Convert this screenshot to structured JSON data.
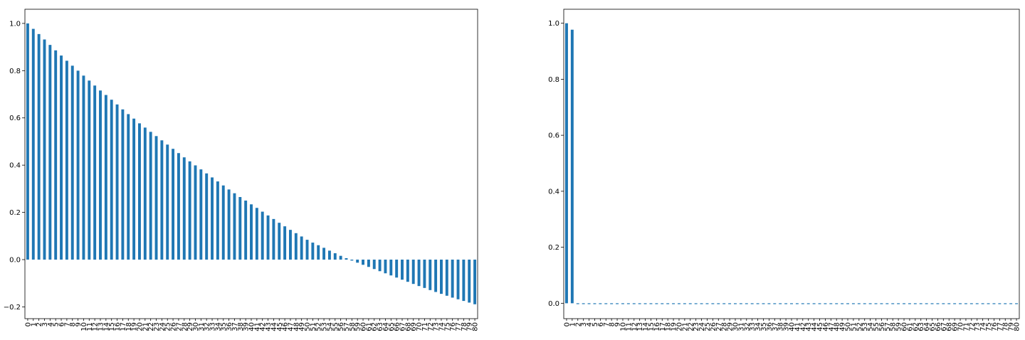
{
  "chart_data": [
    {
      "type": "bar",
      "title": "",
      "xlabel": "",
      "ylabel": "",
      "grid": false,
      "categories": [
        "0",
        "1",
        "2",
        "3",
        "4",
        "5",
        "6",
        "7",
        "8",
        "9",
        "10",
        "11",
        "12",
        "13",
        "14",
        "15",
        "16",
        "17",
        "18",
        "19",
        "20",
        "21",
        "22",
        "23",
        "24",
        "25",
        "26",
        "27",
        "28",
        "29",
        "30",
        "31",
        "32",
        "33",
        "34",
        "35",
        "36",
        "37",
        "38",
        "39",
        "40",
        "41",
        "42",
        "43",
        "44",
        "45",
        "46",
        "47",
        "48",
        "49",
        "50",
        "51",
        "52",
        "53",
        "54",
        "55",
        "56",
        "57",
        "58",
        "59",
        "60",
        "61",
        "62",
        "63",
        "64",
        "65",
        "66",
        "67",
        "68",
        "69",
        "70",
        "71",
        "72",
        "73",
        "74",
        "75",
        "76",
        "77",
        "78",
        "79",
        "80"
      ],
      "values": [
        1.0,
        0.977,
        0.955,
        0.932,
        0.909,
        0.886,
        0.864,
        0.842,
        0.821,
        0.8,
        0.779,
        0.758,
        0.737,
        0.716,
        0.697,
        0.677,
        0.657,
        0.636,
        0.616,
        0.597,
        0.577,
        0.559,
        0.541,
        0.523,
        0.505,
        0.487,
        0.469,
        0.451,
        0.433,
        0.416,
        0.399,
        0.382,
        0.365,
        0.348,
        0.331,
        0.314,
        0.297,
        0.281,
        0.265,
        0.25,
        0.234,
        0.219,
        0.203,
        0.187,
        0.172,
        0.156,
        0.141,
        0.126,
        0.112,
        0.098,
        0.084,
        0.072,
        0.061,
        0.05,
        0.038,
        0.027,
        0.016,
        0.006,
        -0.004,
        -0.013,
        -0.022,
        -0.031,
        -0.04,
        -0.049,
        -0.058,
        -0.067,
        -0.076,
        -0.085,
        -0.094,
        -0.103,
        -0.112,
        -0.12,
        -0.129,
        -0.137,
        -0.145,
        -0.153,
        -0.161,
        -0.168,
        -0.175,
        -0.182,
        -0.189
      ],
      "ylim": [
        -0.25,
        1.06
      ],
      "yticks": [
        "−0.2",
        "0.0",
        "0.2",
        "0.4",
        "0.6",
        "0.8",
        "1.0"
      ],
      "ytick_values": [
        -0.2,
        0.0,
        0.2,
        0.4,
        0.6,
        0.8,
        1.0
      ],
      "color": "#1f77b4"
    },
    {
      "type": "bar",
      "title": "",
      "xlabel": "",
      "ylabel": "",
      "grid": false,
      "categories": [
        "0",
        "1",
        "2",
        "3",
        "4",
        "5",
        "6",
        "7",
        "8",
        "9",
        "10",
        "11",
        "12",
        "13",
        "14",
        "15",
        "16",
        "17",
        "18",
        "19",
        "20",
        "21",
        "22",
        "23",
        "24",
        "25",
        "26",
        "27",
        "28",
        "29",
        "30",
        "31",
        "32",
        "33",
        "34",
        "35",
        "36",
        "37",
        "38",
        "39",
        "40",
        "41",
        "42",
        "43",
        "44",
        "45",
        "46",
        "47",
        "48",
        "49",
        "50",
        "51",
        "52",
        "53",
        "54",
        "55",
        "56",
        "57",
        "58",
        "59",
        "60",
        "61",
        "62",
        "63",
        "64",
        "65",
        "66",
        "67",
        "68",
        "69",
        "70",
        "71",
        "72",
        "73",
        "74",
        "75",
        "76",
        "77",
        "78",
        "79",
        "80"
      ],
      "values": [
        1.0,
        0.977,
        -0.003,
        -0.003,
        -0.003,
        -0.003,
        -0.003,
        -0.003,
        -0.003,
        -0.003,
        -0.003,
        -0.003,
        -0.003,
        -0.003,
        -0.003,
        -0.003,
        -0.003,
        -0.003,
        -0.003,
        -0.003,
        -0.003,
        -0.003,
        -0.003,
        -0.003,
        -0.003,
        -0.003,
        -0.003,
        -0.003,
        -0.003,
        -0.003,
        -0.003,
        -0.003,
        -0.003,
        -0.003,
        -0.003,
        -0.003,
        -0.003,
        -0.003,
        -0.003,
        -0.003,
        -0.003,
        -0.003,
        -0.003,
        -0.003,
        -0.003,
        -0.003,
        -0.003,
        -0.003,
        -0.003,
        -0.003,
        -0.003,
        -0.003,
        -0.003,
        -0.003,
        -0.003,
        -0.003,
        -0.003,
        -0.003,
        -0.003,
        -0.003,
        -0.003,
        -0.003,
        -0.003,
        -0.003,
        -0.003,
        -0.003,
        -0.003,
        -0.003,
        -0.003,
        -0.003,
        -0.003,
        -0.003,
        -0.003,
        -0.003,
        -0.003,
        -0.003,
        -0.003,
        -0.003,
        -0.003,
        -0.003,
        -0.003
      ],
      "ylim": [
        -0.055,
        1.05
      ],
      "yticks": [
        "0.0",
        "0.2",
        "0.4",
        "0.6",
        "0.8",
        "1.0"
      ],
      "ytick_values": [
        0.0,
        0.2,
        0.4,
        0.6,
        0.8,
        1.0
      ],
      "color": "#1f77b4"
    }
  ]
}
